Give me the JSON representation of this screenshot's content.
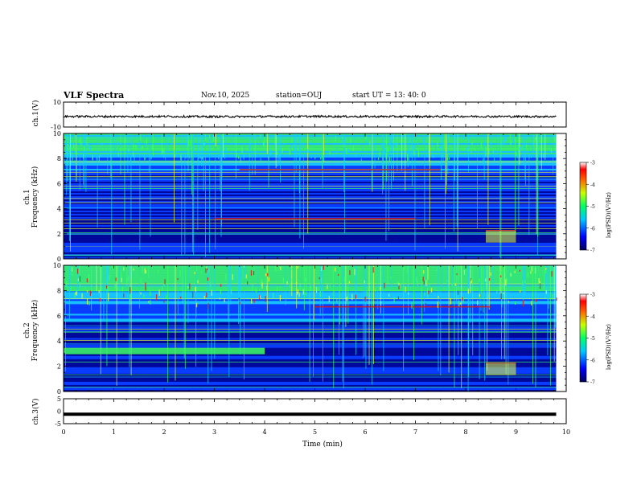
{
  "header": {
    "title": "VLF Spectra",
    "date": "Nov.10, 2025",
    "station": "station=OUJ",
    "start_ut": "start  UT =   13: 40: 0"
  },
  "colors": {
    "background": "#ffffff",
    "axis": "#000000",
    "spec_dark": "#00008b",
    "spec_blue": "#0a3cff",
    "spec_cyan": "#19d2ff",
    "spec_green": "#3cff64",
    "spec_yellow": "#e6ff3c",
    "spec_red": "#dc1414"
  },
  "chart_data": [
    {
      "type": "line",
      "name": "ch1-waveform",
      "ylabel": "ch.1(V)",
      "ylim": [
        -10,
        10
      ],
      "y_ticks": [
        "10",
        "-10"
      ],
      "x": [
        0,
        1,
        2,
        3,
        4,
        5,
        6,
        7,
        8,
        9,
        9.8
      ],
      "values": [
        -1.5,
        -1.6,
        -1.5,
        -1.7,
        -1.6,
        -1.5,
        -1.6,
        -1.6,
        -1.5,
        -1.6,
        -1.6
      ]
    },
    {
      "type": "heatmap",
      "name": "ch1-spectrogram",
      "ylabel_1": "ch.1",
      "ylabel_2": "Frequency (kHz)",
      "ylim": [
        0,
        10
      ],
      "xlim": [
        0,
        10
      ],
      "y_ticks": [
        "0",
        "2",
        "4",
        "6",
        "8",
        "10"
      ],
      "colorbar": {
        "label": "log(PSD)(V²/Hz)",
        "range": [
          -7,
          -3
        ],
        "ticks": [
          "-3",
          "-4",
          "-5",
          "-6",
          "-7"
        ]
      },
      "features": [
        {
          "kind": "band",
          "freq_khz": 7.1,
          "t_start": 3.5,
          "t_end": 7.5,
          "color": "red"
        },
        {
          "kind": "band",
          "freq_khz": 3.2,
          "t_start": 3.0,
          "t_end": 7.0,
          "color": "red"
        },
        {
          "kind": "patch",
          "freq_khz": 1.8,
          "t_start": 8.4,
          "t_end": 9.0,
          "color": "yellow"
        },
        {
          "kind": "noise",
          "freq_range_khz": [
            8,
            10
          ],
          "t_start": 0,
          "t_end": 9.8,
          "color": "cyan-green"
        }
      ]
    },
    {
      "type": "heatmap",
      "name": "ch2-spectrogram",
      "ylabel_1": "ch.2",
      "ylabel_2": "Frequency (kHz)",
      "ylim": [
        0,
        10
      ],
      "xlim": [
        0,
        10
      ],
      "y_ticks": [
        "0",
        "2",
        "4",
        "6",
        "8",
        "10"
      ],
      "colorbar": {
        "label": "log(PSD)(V²/Hz)",
        "range": [
          -7,
          -3
        ],
        "ticks": [
          "-3",
          "-4",
          "-5",
          "-6",
          "-7"
        ]
      },
      "features": [
        {
          "kind": "band",
          "freq_khz": 3.4,
          "t_start": 0,
          "t_end": 4.0,
          "color": "green"
        },
        {
          "kind": "band",
          "freq_khz": 6.7,
          "t_start": 5.0,
          "t_end": 8.5,
          "color": "red"
        },
        {
          "kind": "patch",
          "freq_khz": 1.8,
          "t_start": 8.4,
          "t_end": 9.0,
          "color": "yellow"
        },
        {
          "kind": "noise",
          "freq_range_khz": [
            7,
            10
          ],
          "t_start": 0,
          "t_end": 9.8,
          "color": "green-yellow"
        }
      ]
    },
    {
      "type": "line",
      "name": "ch3-waveform",
      "ylabel": "ch.3(V)",
      "ylim": [
        -5,
        5
      ],
      "y_ticks": [
        "5",
        "0",
        "-5"
      ],
      "x": [
        0,
        9.8
      ],
      "values": [
        -1.2,
        -1.2
      ]
    },
    {
      "type": "axis",
      "name": "time-axis",
      "xlabel": "Time (min)",
      "xlim": [
        0,
        10
      ],
      "x_ticks": [
        "0",
        "1",
        "2",
        "3",
        "4",
        "5",
        "6",
        "7",
        "8",
        "9",
        "10"
      ]
    }
  ]
}
